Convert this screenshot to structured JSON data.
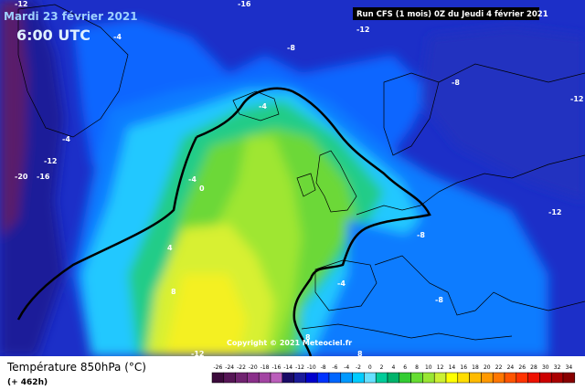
{
  "header": {
    "date": "Mardi 23 février 2021",
    "time": "6:00 UTC",
    "run": "Run CFS (1 mois) 0Z du Jeudi 4 février 2021"
  },
  "copyright": "Copyright © 2021 Meteociel.fr",
  "footer": {
    "title": "Température 850hPa (°C)",
    "lead": "(+ 462h)"
  },
  "legend": {
    "ticks": [
      -26,
      -24,
      -22,
      -20,
      -18,
      -16,
      -14,
      -12,
      -10,
      -8,
      -6,
      -4,
      -2,
      0,
      2,
      4,
      6,
      8,
      10,
      12,
      14,
      16,
      18,
      20,
      22,
      24,
      26,
      28,
      30,
      32,
      34
    ],
    "colors": [
      "#3b0a3b",
      "#561656",
      "#702370",
      "#8a2f8a",
      "#a344a3",
      "#bb5ebb",
      "#1a0a66",
      "#1a1a99",
      "#0000cc",
      "#0033ff",
      "#0066ff",
      "#0099ff",
      "#00ccff",
      "#66e0ff",
      "#00cc99",
      "#00b36b",
      "#33cc33",
      "#66dd33",
      "#99e633",
      "#ccf033",
      "#ffff00",
      "#ffdd00",
      "#ffbb00",
      "#ff9900",
      "#ff7700",
      "#ff5500",
      "#ff3300",
      "#ee1100",
      "#cc0000",
      "#aa0000",
      "#880000"
    ]
  },
  "contour_labels": [
    -12,
    -16,
    -12,
    -4,
    -8,
    -8,
    -12,
    -4,
    -4,
    -12,
    -20,
    -16,
    -4,
    0,
    -12,
    -8,
    4,
    -4,
    8,
    -8,
    -12,
    8,
    8
  ]
}
